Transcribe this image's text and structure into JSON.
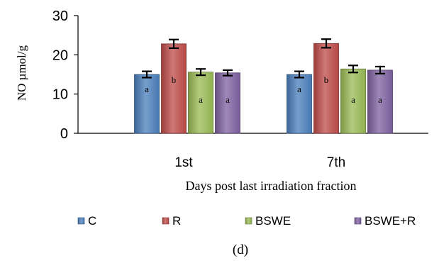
{
  "chart_data": {
    "type": "bar",
    "ylabel": "NO  µmol/g",
    "xlabel": "Days  post  last irradiation fraction",
    "ylim": [
      0,
      30
    ],
    "yticks": [
      0,
      10,
      20,
      30
    ],
    "categories": [
      "1st",
      "7th"
    ],
    "error_bars": true,
    "grid": false,
    "legend_position": "bottom",
    "series": [
      {
        "name": "C",
        "color": "#4a7ebb",
        "values": [
          15.0,
          15.0
        ],
        "errors": [
          0.8,
          0.8
        ],
        "labels": [
          "a",
          "a"
        ]
      },
      {
        "name": "R",
        "color": "#be4b48",
        "values": [
          22.8,
          22.9
        ],
        "errors": [
          1.1,
          1.1
        ],
        "labels": [
          "b",
          "b"
        ]
      },
      {
        "name": "BSWE",
        "color": "#98b954",
        "values": [
          15.6,
          16.4
        ],
        "errors": [
          0.8,
          0.9
        ],
        "labels": [
          "a",
          "a"
        ]
      },
      {
        "name": "BSWE+R",
        "color": "#7d60a0",
        "values": [
          15.4,
          16.1
        ],
        "errors": [
          0.7,
          0.9
        ],
        "labels": [
          "a",
          "a"
        ]
      }
    ],
    "caption": "(d)"
  }
}
